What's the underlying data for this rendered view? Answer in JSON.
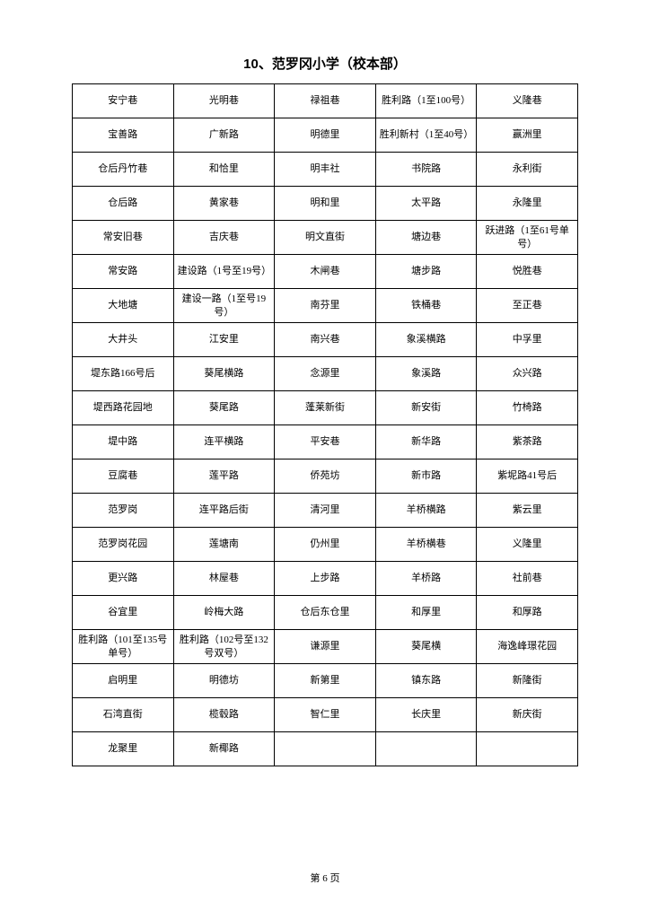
{
  "title": "10、范罗冈小学（校本部）",
  "footer": "第 6 页",
  "table": {
    "rows": [
      [
        "安宁巷",
        "光明巷",
        "禄祖巷",
        "胜利路（1至100号）",
        "义隆巷"
      ],
      [
        "宝善路",
        "广新路",
        "明德里",
        "胜利新村（1至40号）",
        "赢洲里"
      ],
      [
        "仓后丹竹巷",
        "和恰里",
        "明丰社",
        "书院路",
        "永利街"
      ],
      [
        "仓后路",
        "黄家巷",
        "明和里",
        "太平路",
        "永隆里"
      ],
      [
        "常安旧巷",
        "吉庆巷",
        "明文直街",
        "塘边巷",
        "跃进路（1至61号单号）"
      ],
      [
        "常安路",
        "建设路（1号至19号）",
        "木闸巷",
        "塘步路",
        "悦胜巷"
      ],
      [
        "大地塘",
        "建设一路（1至号19号）",
        "南芬里",
        "铁桶巷",
        "至正巷"
      ],
      [
        "大井头",
        "江安里",
        "南兴巷",
        "象溪横路",
        "中孚里"
      ],
      [
        "堤东路166号后",
        "葵尾横路",
        "念源里",
        "象溪路",
        "众兴路"
      ],
      [
        "堤西路花园地",
        "葵尾路",
        "蓬莱新街",
        "新安街",
        "竹椅路"
      ],
      [
        "堤中路",
        "连平横路",
        "平安巷",
        "新华路",
        "紫茶路"
      ],
      [
        "豆腐巷",
        "莲平路",
        "侨苑坊",
        "新市路",
        "紫坭路41号后"
      ],
      [
        "范罗岗",
        "连平路后街",
        "清河里",
        "羊桥横路",
        "紫云里"
      ],
      [
        "范罗岗花园",
        "莲塘南",
        "仍州里",
        "羊桥横巷",
        "义隆里"
      ],
      [
        "更兴路",
        "林屋巷",
        "上步路",
        "羊桥路",
        "社前巷"
      ],
      [
        "谷宜里",
        "岭梅大路",
        "仓后东仓里",
        "和厚里",
        "和厚路"
      ],
      [
        "胜利路（101至135号单号）",
        "胜利路（102号至132号双号）",
        "谦源里",
        "葵尾横",
        "海逸峰璟花园"
      ],
      [
        "启明里",
        "明德坊",
        "新第里",
        "镇东路",
        "新隆街"
      ],
      [
        "石湾直街",
        "榄毂路",
        "智仁里",
        "长庆里",
        "新庆街"
      ],
      [
        "龙聚里",
        "新椰路",
        "",
        "",
        ""
      ]
    ]
  }
}
